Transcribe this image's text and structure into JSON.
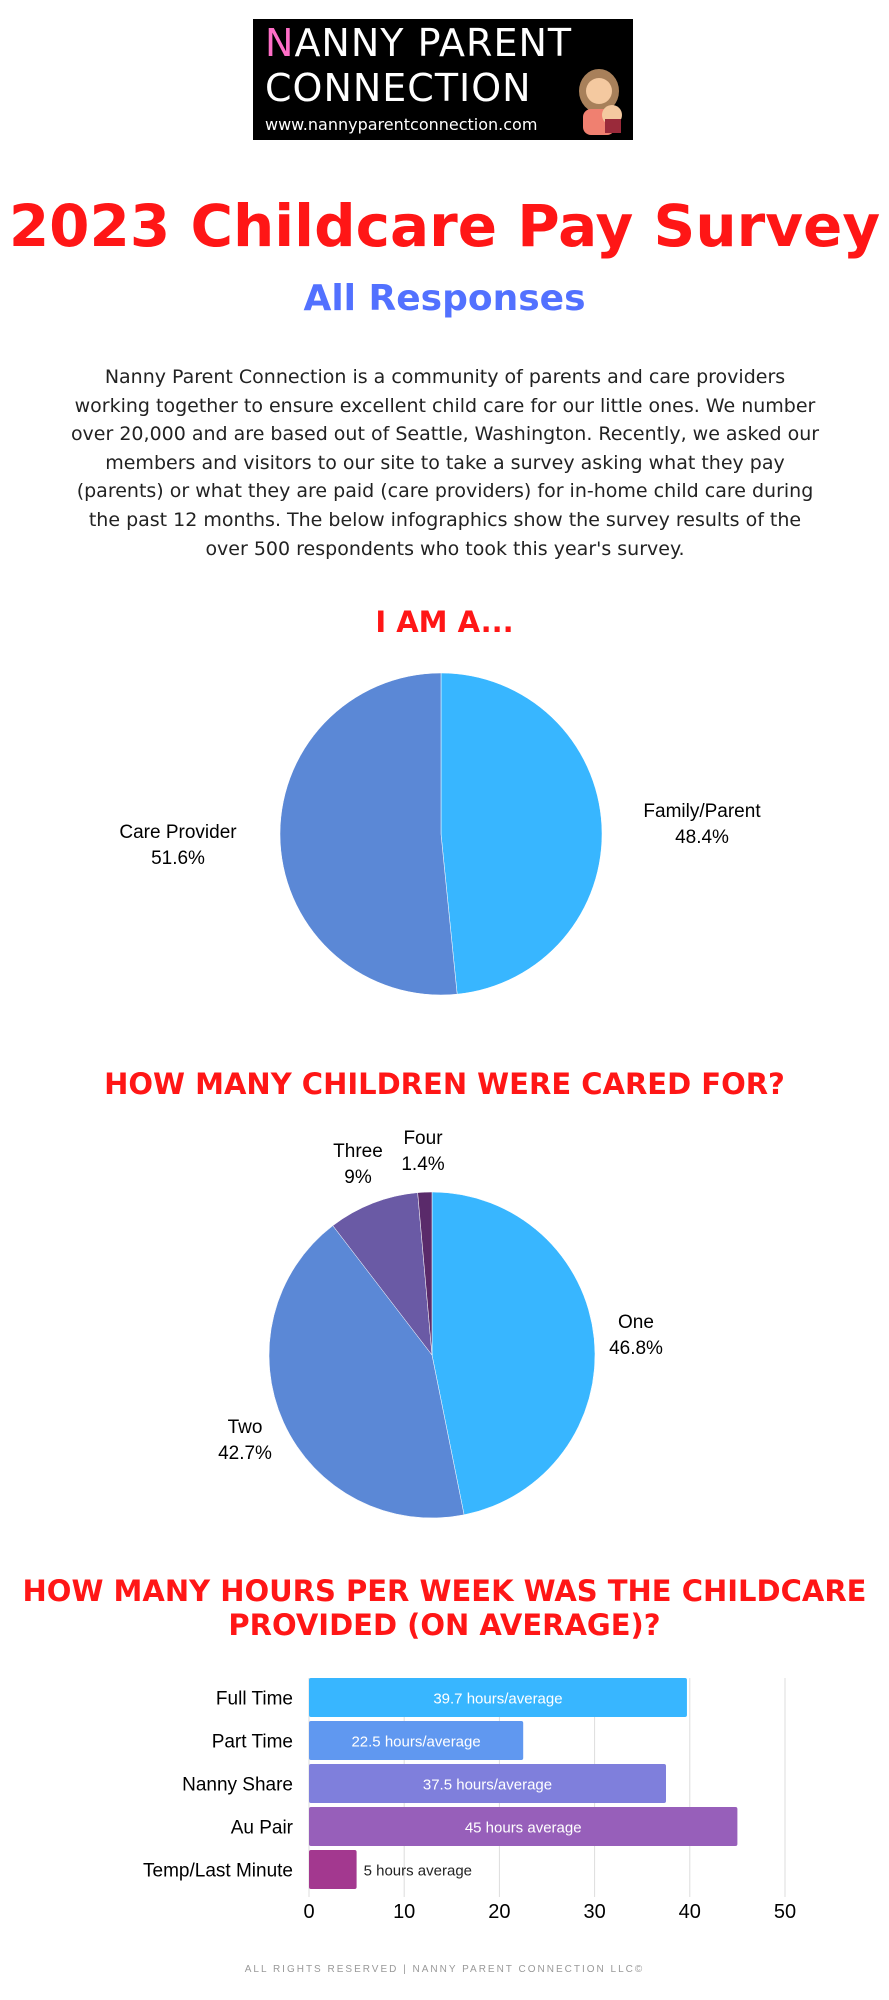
{
  "logo": {
    "first_letter": "N",
    "line1_rest": "ANNY PARENT",
    "line2": "CONNECTION",
    "url": "www.nannyparentconnection.com"
  },
  "title": "2023 Childcare Pay Survey",
  "subtitle": "All Responses",
  "intro": "Nanny Parent Connection is a community of parents and care providers working together to ensure excellent child care for our little ones. We number over 20,000 and are based out of Seattle, Washington. Recently, we asked our members and visitors to our site to take a survey asking what they pay (parents) or what they are paid (care providers) for in-home child care during the past 12 months. The below infographics show the survey results of the over 500 respondents who took this year's survey.",
  "footer": "ALL RIGHTS RESERVED | NANNY PARENT CONNECTION LLC©",
  "chart_data": [
    {
      "type": "pie",
      "title": "I AM A...",
      "labels": [
        "Family/Parent",
        "Care Provider"
      ],
      "values": [
        48.4,
        51.6
      ],
      "value_labels": [
        "48.4%",
        "51.6%"
      ],
      "colors": [
        "#38b6ff",
        "#5b88d6"
      ]
    },
    {
      "type": "pie",
      "title": "HOW MANY CHILDREN WERE CARED FOR?",
      "labels": [
        "One",
        "Two",
        "Three",
        "Four"
      ],
      "values": [
        46.8,
        42.7,
        9,
        1.4
      ],
      "value_labels": [
        "46.8%",
        "42.7%",
        "9%",
        "1.4%"
      ],
      "colors": [
        "#38b6ff",
        "#5b88d6",
        "#6a5aa5",
        "#5a2a6a"
      ]
    },
    {
      "type": "bar",
      "orientation": "horizontal",
      "title": "HOW MANY HOURS PER WEEK WAS THE CHILDCARE PROVIDED (ON AVERAGE)?",
      "categories": [
        "Full Time",
        "Part Time",
        "Nanny Share",
        "Au Pair",
        "Temp/Last Minute"
      ],
      "values": [
        39.7,
        22.5,
        37.5,
        45,
        5
      ],
      "data_labels": [
        "39.7 hours/average",
        "22.5 hours/average",
        "37.5 hours/average",
        "45 hours average",
        "5 hours average"
      ],
      "colors": [
        "#38b6ff",
        "#6098f0",
        "#7f7fdc",
        "#975fba",
        "#a3388f"
      ],
      "xlim": [
        0,
        50
      ],
      "xticks": [
        "0",
        "10",
        "20",
        "30",
        "40",
        "50"
      ],
      "grid": true
    }
  ]
}
